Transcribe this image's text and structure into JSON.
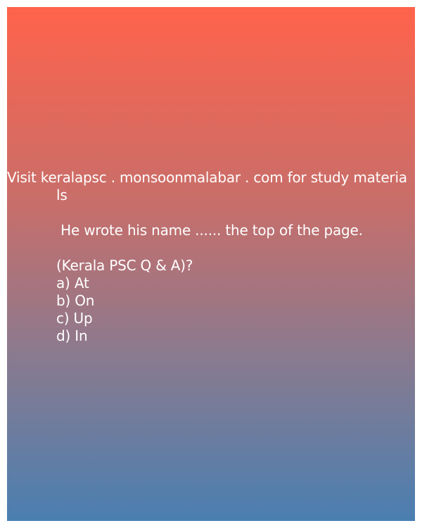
{
  "post": {
    "visit_line_1": "Visit keralapsc . monsoonmalabar . com for study materia",
    "visit_line_2": "ls",
    "question": " He wrote his name ...... the top of the page.",
    "source": "(Kerala PSC Q & A)?",
    "options": [
      {
        "text": "a) At"
      },
      {
        "text": "b) On"
      },
      {
        "text": "c) Up"
      },
      {
        "text": "d) In"
      }
    ]
  },
  "colors": {
    "gradient_top": "#ff634b",
    "gradient_bottom": "#4a7fb1",
    "text": "#ffffff"
  }
}
